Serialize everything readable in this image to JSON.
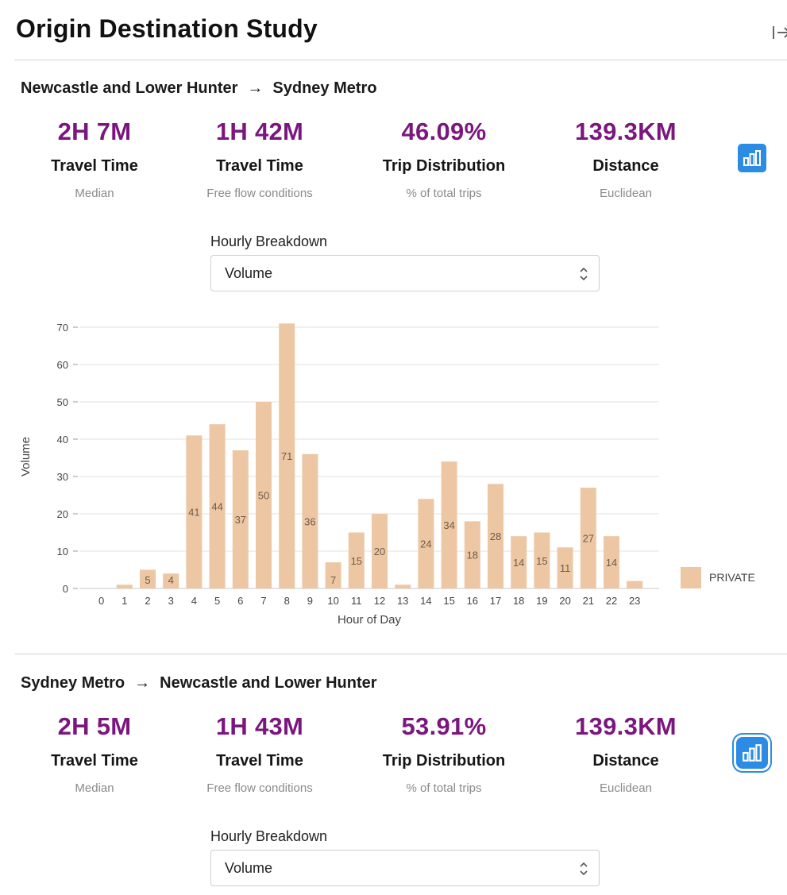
{
  "page": {
    "title": "Origin Destination Study",
    "collapse_icon": "collapse-panel-icon"
  },
  "routes": [
    {
      "origin": "Newcastle and Lower Hunter",
      "arrow": "→",
      "destination": "Sydney Metro",
      "stats": [
        {
          "value": "2H 7M",
          "label": "Travel Time",
          "sub": "Median"
        },
        {
          "value": "1H 42M",
          "label": "Travel Time",
          "sub": "Free flow conditions"
        },
        {
          "value": "46.09%",
          "label": "Trip Distribution",
          "sub": "% of total trips"
        },
        {
          "value": "139.3KM",
          "label": "Distance",
          "sub": "Euclidean"
        }
      ],
      "breakdown_label": "Hourly Breakdown",
      "breakdown_value": "Volume"
    },
    {
      "origin": "Sydney Metro",
      "arrow": "→",
      "destination": "Newcastle and Lower Hunter",
      "stats": [
        {
          "value": "2H 5M",
          "label": "Travel Time",
          "sub": "Median"
        },
        {
          "value": "1H 43M",
          "label": "Travel Time",
          "sub": "Free flow conditions"
        },
        {
          "value": "53.91%",
          "label": "Trip Distribution",
          "sub": "% of total trips"
        },
        {
          "value": "139.3KM",
          "label": "Distance",
          "sub": "Euclidean"
        }
      ],
      "breakdown_label": "Hourly Breakdown",
      "breakdown_value": "Volume"
    }
  ],
  "colors": {
    "accent": "#7b167f",
    "bar": "#edc7a3",
    "button": "#2c8be3"
  },
  "chart_data": {
    "type": "bar",
    "title": "",
    "xlabel": "Hour of Day",
    "ylabel": "Volume",
    "categories": [
      "0",
      "1",
      "2",
      "3",
      "4",
      "5",
      "6",
      "7",
      "8",
      "9",
      "10",
      "11",
      "12",
      "13",
      "14",
      "15",
      "16",
      "17",
      "18",
      "19",
      "20",
      "21",
      "22",
      "23"
    ],
    "series": [
      {
        "name": "PRIVATE",
        "values": [
          0,
          1,
          5,
          4,
          41,
          44,
          37,
          50,
          71,
          36,
          7,
          15,
          20,
          1,
          24,
          34,
          18,
          28,
          14,
          15,
          11,
          27,
          14,
          2
        ],
        "data_labels": [
          "",
          "",
          "5",
          "4",
          "41",
          "44",
          "37",
          "50",
          "71",
          "36",
          "7",
          "15",
          "20",
          "",
          "24",
          "34",
          "18",
          "28",
          "14",
          "15",
          "11",
          "27",
          "14",
          ""
        ]
      }
    ],
    "yticks": [
      "0",
      "10",
      "20",
      "30",
      "40",
      "50",
      "60",
      "70"
    ],
    "ylim": [
      0,
      70
    ],
    "grid": true,
    "legend": "right"
  }
}
